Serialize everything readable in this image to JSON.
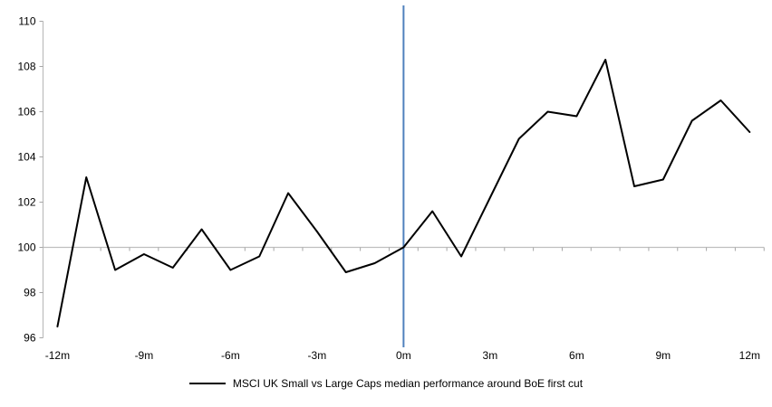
{
  "chart_data": {
    "type": "line",
    "title": "",
    "xlabel": "",
    "ylabel": "",
    "x_months": [
      -12,
      -11,
      -10,
      -9,
      -8,
      -7,
      -6,
      -5,
      -4,
      -3,
      -2,
      -1,
      0,
      1,
      2,
      3,
      4,
      5,
      6,
      7,
      8,
      9,
      10,
      11,
      12
    ],
    "series": [
      {
        "name": "MSCI UK Small vs Large Caps median performance around BoE first cut",
        "color": "#000000",
        "values": [
          96.5,
          103.1,
          99.0,
          99.7,
          99.1,
          100.8,
          99.0,
          99.6,
          102.4,
          100.7,
          98.9,
          99.3,
          100.0,
          101.6,
          99.6,
          102.2,
          104.8,
          106.0,
          105.8,
          108.3,
          102.7,
          103.0,
          105.6,
          106.5,
          105.1
        ]
      }
    ],
    "ylim": [
      96,
      110
    ],
    "xlim_months": [
      -12,
      12
    ],
    "y_ticks": [
      110,
      108,
      106,
      104,
      102,
      100,
      98,
      96
    ],
    "x_ticks": [
      {
        "label": "-12m",
        "month": -12
      },
      {
        "label": "-9m",
        "month": -9
      },
      {
        "label": "-6m",
        "month": -6
      },
      {
        "label": "-3m",
        "month": -3
      },
      {
        "label": "0m",
        "month": 0
      },
      {
        "label": "3m",
        "month": 3
      },
      {
        "label": "6m",
        "month": 6
      },
      {
        "label": "9m",
        "month": 9
      },
      {
        "label": "12m",
        "month": 12
      }
    ],
    "baseline_value": 100,
    "event_line": {
      "month": 0,
      "color": "#4F81BD"
    },
    "grid": "off",
    "legend": {
      "position": "bottom-center",
      "entries": [
        {
          "label": "MSCI UK Small vs Large Caps median performance around BoE first cut",
          "color": "#000000",
          "marker": "line"
        }
      ]
    },
    "colors": {
      "series": "#000000",
      "event_line": "#4F81BD",
      "axis": "#BFBFBF",
      "tick": "#A6A6A6",
      "baseline": "#BFBFBF",
      "text": "#000000",
      "background": "#FFFFFF"
    }
  }
}
